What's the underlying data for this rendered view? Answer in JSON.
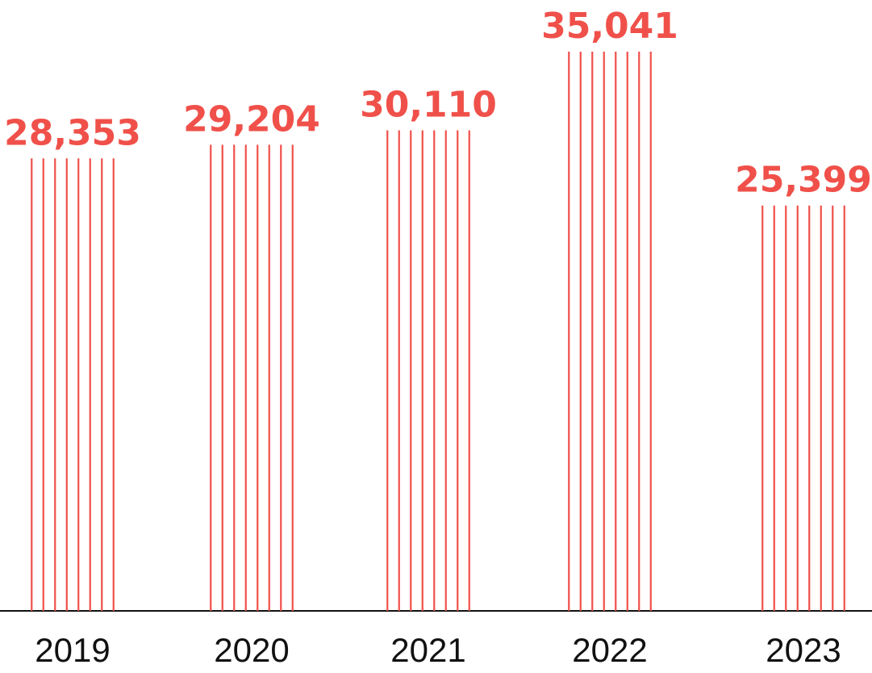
{
  "chart_data": {
    "type": "bar",
    "categories": [
      "2019",
      "2020",
      "2021",
      "2022",
      "2023"
    ],
    "values": [
      28353,
      29204,
      30110,
      35041,
      25399
    ],
    "value_labels": [
      "28,353",
      "29,204",
      "30,110",
      "35,041",
      "25,399"
    ],
    "title": "",
    "xlabel": "",
    "ylabel": "",
    "ylim": [
      0,
      35041
    ],
    "grid": false,
    "legend": "none",
    "colors": {
      "bar": "#f0504a",
      "value_label": "#f0504a",
      "axis": "#111111",
      "category_label": "#111111"
    }
  }
}
